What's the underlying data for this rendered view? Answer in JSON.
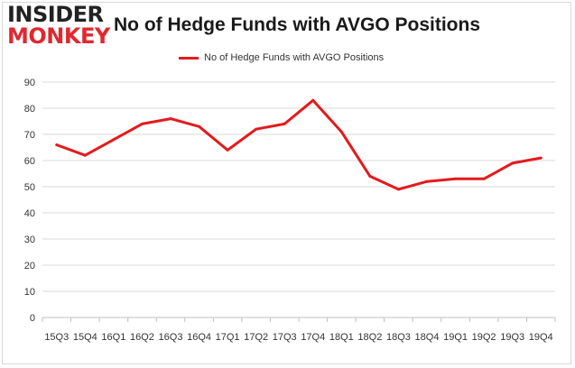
{
  "brand": {
    "line1": "INSIDER",
    "line2": "MONKEY"
  },
  "colors": {
    "series": "#e41a1c",
    "grid": "#d9d9d9",
    "axis": "#bfbfbf",
    "brand_red": "#e0282f"
  },
  "chart_data": {
    "type": "line",
    "title": "No of Hedge Funds with AVGO Positions",
    "xlabel": "",
    "ylabel": "",
    "ylim": [
      0,
      90
    ],
    "yticks": [
      0,
      10,
      20,
      30,
      40,
      50,
      60,
      70,
      80,
      90
    ],
    "grid": true,
    "legend_position": "top-center",
    "categories": [
      "15Q3",
      "15Q4",
      "16Q1",
      "16Q2",
      "16Q3",
      "16Q4",
      "17Q1",
      "17Q2",
      "17Q3",
      "17Q4",
      "18Q1",
      "18Q2",
      "18Q3",
      "18Q4",
      "19Q1",
      "19Q2",
      "19Q3",
      "19Q4"
    ],
    "series": [
      {
        "name": "No of Hedge Funds with AVGO Positions",
        "values": [
          66,
          62,
          68,
          74,
          76,
          73,
          64,
          72,
          74,
          83,
          71,
          54,
          49,
          52,
          53,
          53,
          59,
          61
        ]
      }
    ]
  }
}
